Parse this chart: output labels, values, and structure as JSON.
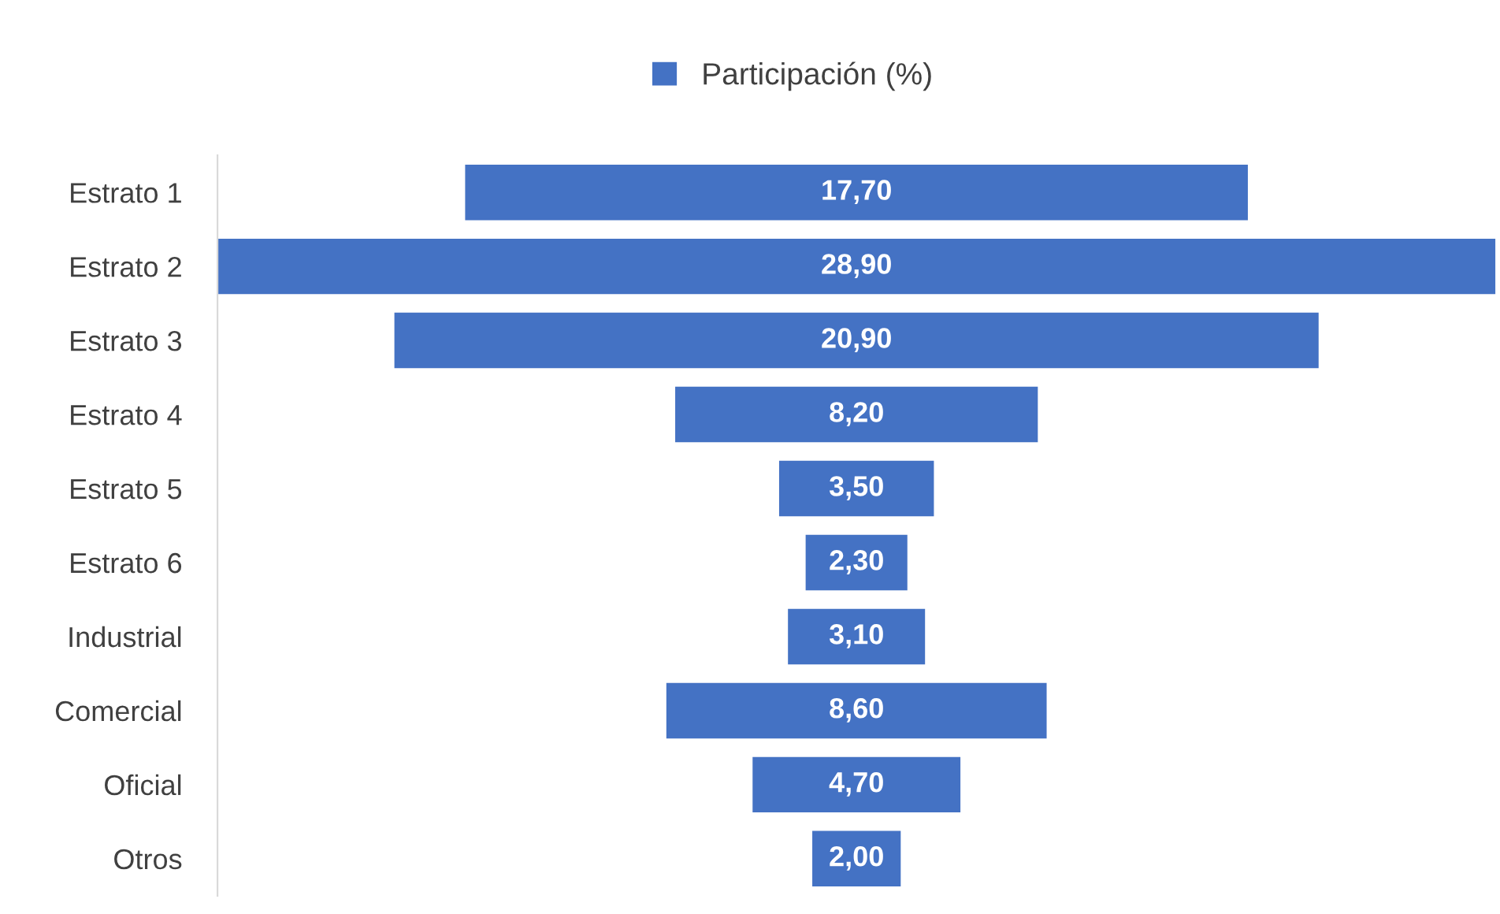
{
  "chart_data": {
    "type": "other",
    "legend": "top",
    "categories": [
      "Estrato 1",
      "Estrato 2",
      "Estrato 3",
      "Estrato 4",
      "Estrato 5",
      "Estrato 6",
      "Industrial",
      "Comercial",
      "Oficial",
      "Otros"
    ],
    "series": [
      {
        "name": "Participación (%)",
        "color": "#4472c4",
        "values": [
          17.7,
          28.9,
          20.9,
          8.2,
          3.5,
          2.3,
          3.1,
          8.6,
          4.7,
          2.0
        ],
        "value_labels": [
          "17,70",
          "28,90",
          "20,90",
          "8,20",
          "3,50",
          "2,30",
          "3,10",
          "8,60",
          "4,70",
          "2,00"
        ]
      }
    ]
  }
}
